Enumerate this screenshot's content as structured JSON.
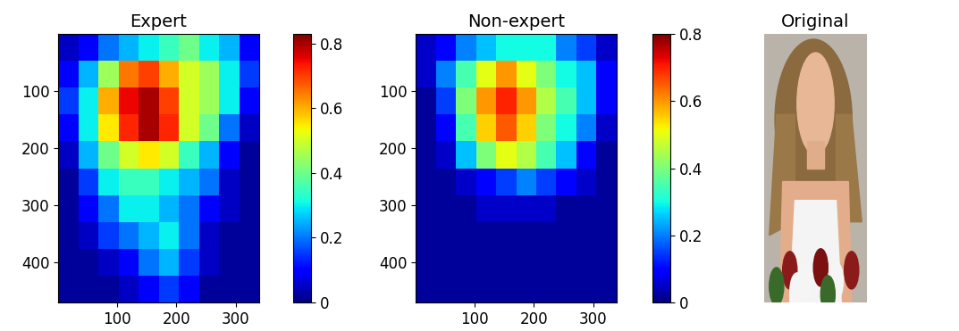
{
  "chart_data": [
    {
      "type": "heatmap",
      "title": "Expert",
      "x_edges": [
        0,
        34,
        68,
        102,
        136,
        170,
        204,
        238,
        272,
        306,
        340
      ],
      "y_edges": [
        0,
        47,
        94,
        141,
        188,
        235,
        282,
        329,
        376,
        423,
        470
      ],
      "xlim": [
        0,
        340
      ],
      "ylim": [
        470,
        0
      ],
      "xticks": [
        100,
        200,
        300
      ],
      "yticks": [
        100,
        200,
        300,
        400
      ],
      "cells": [
        [
          0.05,
          0.1,
          0.2,
          0.25,
          0.3,
          0.35,
          0.4,
          0.3,
          0.25,
          0.1
        ],
        [
          0.1,
          0.25,
          0.45,
          0.65,
          0.7,
          0.6,
          0.5,
          0.45,
          0.3,
          0.15
        ],
        [
          0.15,
          0.3,
          0.6,
          0.75,
          0.8,
          0.7,
          0.5,
          0.45,
          0.3,
          0.1
        ],
        [
          0.1,
          0.3,
          0.55,
          0.72,
          0.8,
          0.72,
          0.5,
          0.4,
          0.2,
          0.05
        ],
        [
          0.05,
          0.25,
          0.4,
          0.5,
          0.55,
          0.5,
          0.35,
          0.25,
          0.1,
          0.02
        ],
        [
          0.02,
          0.15,
          0.3,
          0.35,
          0.35,
          0.3,
          0.25,
          0.2,
          0.05,
          0.02
        ],
        [
          0.02,
          0.1,
          0.2,
          0.3,
          0.3,
          0.25,
          0.2,
          0.1,
          0.05,
          0.02
        ],
        [
          0.02,
          0.05,
          0.15,
          0.2,
          0.25,
          0.3,
          0.2,
          0.05,
          0.02,
          0.02
        ],
        [
          0.02,
          0.02,
          0.05,
          0.1,
          0.2,
          0.25,
          0.15,
          0.05,
          0.02,
          0.02
        ],
        [
          0.02,
          0.02,
          0.02,
          0.05,
          0.1,
          0.15,
          0.1,
          0.02,
          0.02,
          0.02
        ]
      ],
      "colorbar": {
        "range": [
          0,
          0.83
        ],
        "ticks": [
          0,
          0.2,
          0.4,
          0.6,
          0.8
        ]
      }
    },
    {
      "type": "heatmap",
      "title": "Non-expert",
      "x_edges": [
        0,
        34,
        68,
        102,
        136,
        170,
        204,
        238,
        272,
        306,
        340
      ],
      "y_edges": [
        0,
        47,
        94,
        141,
        188,
        235,
        282,
        329,
        376,
        423,
        470
      ],
      "xlim": [
        0,
        340
      ],
      "ylim": [
        470,
        0
      ],
      "xticks": [
        100,
        200,
        300
      ],
      "yticks": [
        100,
        200,
        300,
        400
      ],
      "cells": [
        [
          0.05,
          0.1,
          0.2,
          0.25,
          0.3,
          0.3,
          0.3,
          0.2,
          0.15,
          0.05
        ],
        [
          0.05,
          0.2,
          0.35,
          0.5,
          0.6,
          0.5,
          0.4,
          0.3,
          0.25,
          0.1
        ],
        [
          0.02,
          0.15,
          0.4,
          0.6,
          0.7,
          0.6,
          0.45,
          0.35,
          0.25,
          0.1
        ],
        [
          0.02,
          0.1,
          0.35,
          0.55,
          0.65,
          0.55,
          0.4,
          0.3,
          0.2,
          0.05
        ],
        [
          0.02,
          0.05,
          0.25,
          0.4,
          0.5,
          0.45,
          0.35,
          0.25,
          0.1,
          0.02
        ],
        [
          0.02,
          0.02,
          0.05,
          0.1,
          0.15,
          0.2,
          0.15,
          0.1,
          0.05,
          0.02
        ],
        [
          0.02,
          0.02,
          0.02,
          0.05,
          0.05,
          0.05,
          0.05,
          0.02,
          0.02,
          0.02
        ],
        [
          0.02,
          0.02,
          0.02,
          0.02,
          0.02,
          0.02,
          0.02,
          0.02,
          0.02,
          0.02
        ],
        [
          0.02,
          0.02,
          0.02,
          0.02,
          0.02,
          0.02,
          0.02,
          0.02,
          0.02,
          0.02
        ],
        [
          0.02,
          0.02,
          0.02,
          0.02,
          0.02,
          0.02,
          0.02,
          0.02,
          0.02,
          0.02
        ]
      ],
      "colorbar": {
        "range": [
          0,
          0.8
        ],
        "ticks": [
          0,
          0.2,
          0.4,
          0.6,
          0.8
        ]
      }
    }
  ],
  "image": {
    "title": "Original"
  }
}
